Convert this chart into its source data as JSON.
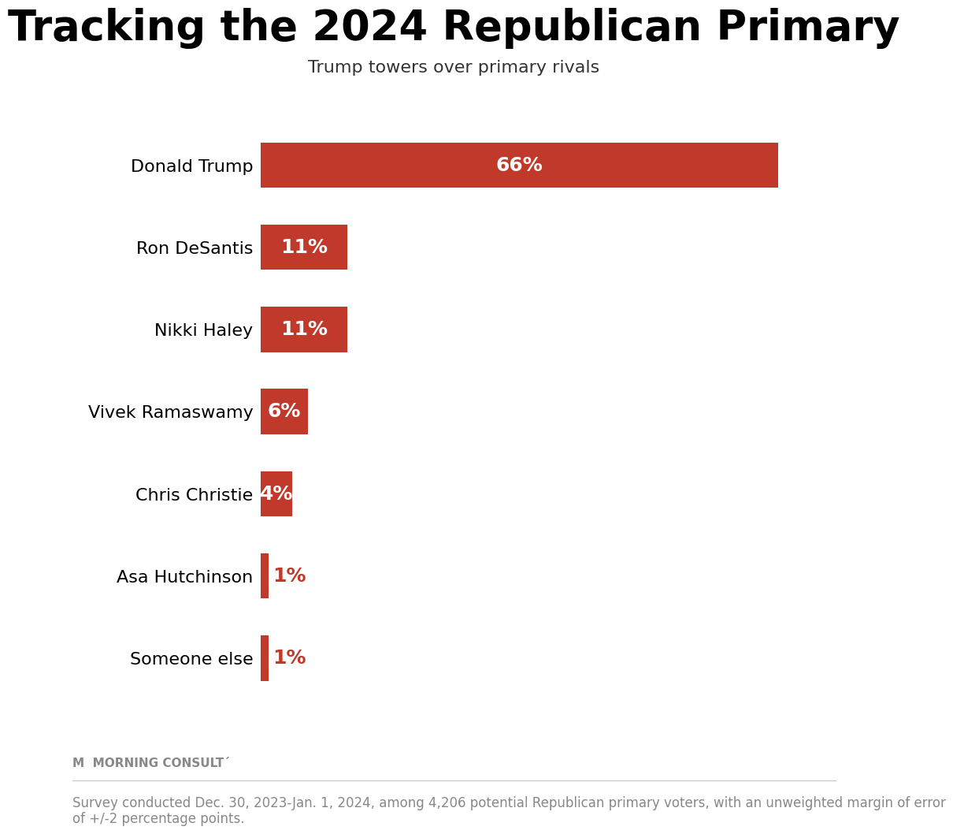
{
  "title": "Tracking the 2024 Republican Primary",
  "subtitle": "Trump towers over primary rivals",
  "candidates": [
    "Donald Trump",
    "Ron DeSantis",
    "Nikki Haley",
    "Vivek Ramaswamy",
    "Chris Christie",
    "Asa Hutchinson",
    "Someone else"
  ],
  "values": [
    66,
    11,
    11,
    6,
    4,
    1,
    1
  ],
  "bar_color": "#c0392b",
  "bar_color_light": "#c0392b",
  "label_color_white": "#ffffff",
  "label_color_red": "#c0392b",
  "background_color": "#ffffff",
  "title_fontsize": 38,
  "subtitle_fontsize": 16,
  "bar_label_fontsize": 18,
  "candidate_label_fontsize": 16,
  "footer_text": "Survey conducted Dec. 30, 2023-Jan. 1, 2024, among 4,206 potential Republican primary voters, with an unweighted margin of error\nof +/-2 percentage points.",
  "footer_fontsize": 12,
  "mc_logo_text": "MORNING CONSULT",
  "mc_logo_fontsize": 11
}
